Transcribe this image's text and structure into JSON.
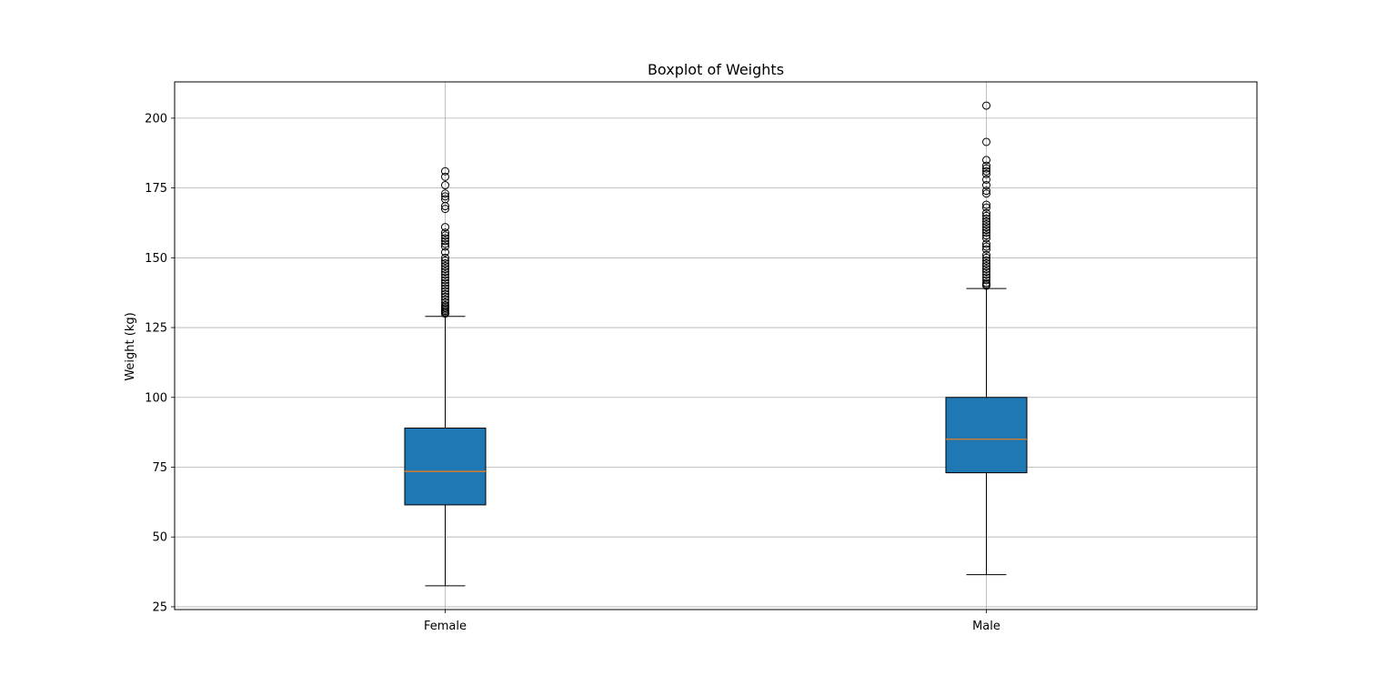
{
  "chart_data": {
    "type": "boxplot",
    "title": "Boxplot of Weights",
    "xlabel": "",
    "ylabel": "Weight (kg)",
    "ylim": [
      24,
      213
    ],
    "yticks": [
      25,
      50,
      75,
      100,
      125,
      150,
      175,
      200
    ],
    "grid": true,
    "categories": [
      "Female",
      "Male"
    ],
    "colors": {
      "box_fill": "#1f77b4",
      "median": "#ff7f0e",
      "grid": "#b0b0b0",
      "edge": "#000000"
    },
    "boxes": [
      {
        "name": "Female",
        "whisker_low": 32.5,
        "q1": 61.5,
        "median": 73.5,
        "q3": 89,
        "whisker_high": 129,
        "outliers": [
          130,
          130.5,
          131,
          131.5,
          132,
          132.5,
          133,
          134,
          135,
          136,
          137,
          138,
          139,
          140,
          141,
          142,
          143,
          144,
          145,
          146,
          147,
          148,
          149,
          150,
          152,
          154,
          155,
          156,
          157,
          158,
          159,
          161,
          167.5,
          168.5,
          171,
          172,
          173,
          176,
          179,
          181
        ]
      },
      {
        "name": "Male",
        "whisker_low": 36.5,
        "q1": 73,
        "median": 85,
        "q3": 100,
        "whisker_high": 139,
        "outliers": [
          140,
          140.5,
          141,
          142,
          143,
          144,
          145,
          146,
          147,
          148,
          149,
          150,
          151,
          153,
          154,
          155,
          157,
          158,
          159,
          160,
          161,
          162,
          163,
          164,
          165,
          166,
          168,
          169,
          173,
          174,
          176,
          178,
          180,
          181,
          182,
          183,
          185,
          191.5,
          204.5
        ]
      }
    ]
  }
}
